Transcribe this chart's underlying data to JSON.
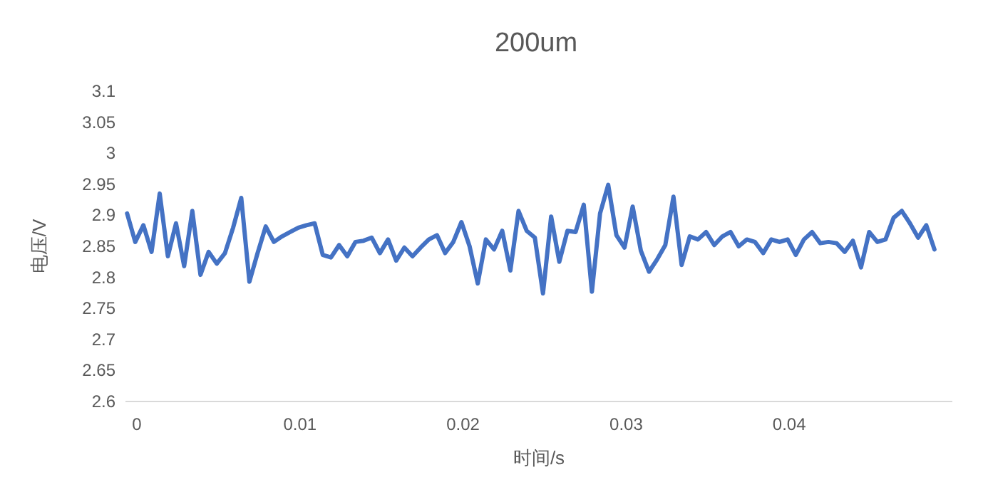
{
  "chart_data": {
    "type": "line",
    "title": "200um",
    "xlabel": "时间/s",
    "ylabel": "电压/V",
    "xlim": [
      -0.0007,
      0.05
    ],
    "xticks": [
      0,
      0.01,
      0.02,
      0.03,
      0.04
    ],
    "ylim": [
      2.6,
      3.1
    ],
    "yticks": [
      2.6,
      2.65,
      2.7,
      2.75,
      2.8,
      2.85,
      2.9,
      2.95,
      3,
      3.05,
      3.1
    ],
    "x": [
      -0.0006,
      -0.0001,
      0.0004,
      0.0009,
      0.0014,
      0.0019,
      0.0024,
      0.0029,
      0.0034,
      0.0039,
      0.0044,
      0.0049,
      0.0054,
      0.0059,
      0.0064,
      0.0069,
      0.0074,
      0.0079,
      0.0084,
      0.0089,
      0.0094,
      0.0099,
      0.0104,
      0.0109,
      0.0114,
      0.0119,
      0.0124,
      0.0129,
      0.0134,
      0.0139,
      0.0144,
      0.0149,
      0.0154,
      0.0159,
      0.0164,
      0.0169,
      0.0174,
      0.0179,
      0.0184,
      0.0189,
      0.0194,
      0.0199,
      0.0204,
      0.0209,
      0.0214,
      0.0219,
      0.0224,
      0.0229,
      0.0234,
      0.0239,
      0.0244,
      0.0249,
      0.0254,
      0.0259,
      0.0264,
      0.0269,
      0.0274,
      0.0279,
      0.0284,
      0.0289,
      0.0294,
      0.0299,
      0.0304,
      0.0309,
      0.0314,
      0.0319,
      0.0324,
      0.0329,
      0.0334,
      0.0339,
      0.0344,
      0.0349,
      0.0354,
      0.0359,
      0.0364,
      0.0369,
      0.0374,
      0.0379,
      0.0384,
      0.0389,
      0.0394,
      0.0399,
      0.0404,
      0.0409,
      0.0414,
      0.0419,
      0.0424,
      0.0429,
      0.0434,
      0.0439,
      0.0444,
      0.0449,
      0.0454,
      0.0459,
      0.0464,
      0.0469,
      0.0474,
      0.0479,
      0.0484,
      0.0489
    ],
    "series": [
      {
        "color": "#4472c4",
        "values": [
          2.903,
          2.857,
          2.884,
          2.841,
          2.935,
          2.834,
          2.887,
          2.818,
          2.907,
          2.804,
          2.841,
          2.822,
          2.839,
          2.88,
          2.928,
          2.793,
          2.839,
          2.882,
          2.857,
          2.866,
          2.873,
          2.88,
          2.884,
          2.887,
          2.836,
          2.832,
          2.852,
          2.834,
          2.857,
          2.859,
          2.864,
          2.839,
          2.861,
          2.827,
          2.848,
          2.834,
          2.848,
          2.861,
          2.868,
          2.839,
          2.857,
          2.889,
          2.85,
          2.79,
          2.861,
          2.845,
          2.875,
          2.811,
          2.907,
          2.875,
          2.864,
          2.774,
          2.898,
          2.825,
          2.875,
          2.873,
          2.917,
          2.777,
          2.903,
          2.949,
          2.868,
          2.848,
          2.914,
          2.843,
          2.809,
          2.829,
          2.852,
          2.93,
          2.82,
          2.866,
          2.861,
          2.873,
          2.852,
          2.866,
          2.873,
          2.85,
          2.861,
          2.857,
          2.839,
          2.861,
          2.857,
          2.861,
          2.836,
          2.861,
          2.873,
          2.855,
          2.857,
          2.855,
          2.841,
          2.859,
          2.816,
          2.873,
          2.857,
          2.861,
          2.896,
          2.907,
          2.887,
          2.864,
          2.884,
          2.845
        ]
      }
    ]
  }
}
